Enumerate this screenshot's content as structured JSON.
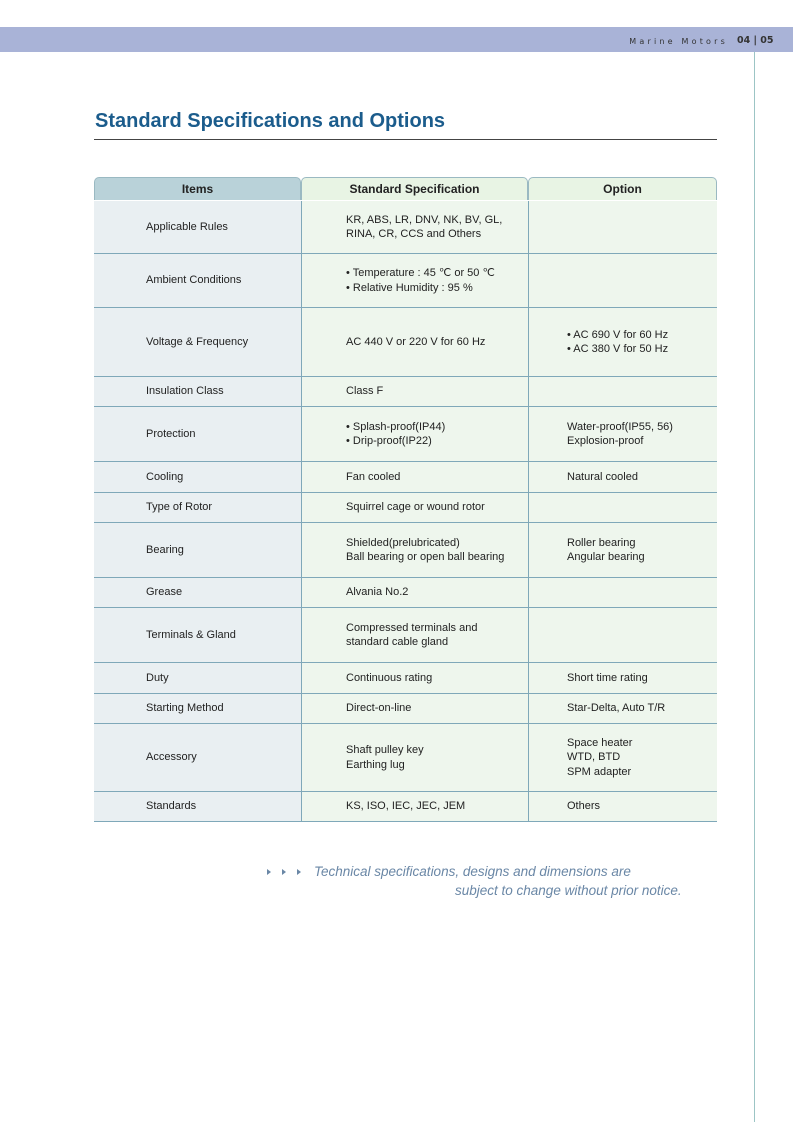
{
  "header": {
    "brand": "Marine Motors",
    "pages": "04 | 05"
  },
  "title": "Standard Specifications and Options",
  "table": {
    "columns": [
      "Items",
      "Standard Specification",
      "Option"
    ],
    "rows": [
      [
        [
          "Applicable Rules"
        ],
        [
          "KR, ABS, LR, DNV, NK, BV, GL,",
          "RINA, CR, CCS and Others"
        ],
        []
      ],
      [
        [
          "Ambient Conditions"
        ],
        [
          "• Temperature : 45 ℃ or 50 ℃",
          "• Relative Humidity : 95 %"
        ],
        []
      ],
      [
        [
          "Voltage & Frequency"
        ],
        [
          "AC 440 V or 220 V for 60 Hz"
        ],
        [
          "• AC 690 V for 60 Hz",
          "• AC 380 V for 50 Hz"
        ]
      ],
      [
        [
          "Insulation Class"
        ],
        [
          "Class F"
        ],
        []
      ],
      [
        [
          "Protection"
        ],
        [
          "• Splash-proof(IP44)",
          "• Drip-proof(IP22)"
        ],
        [
          "Water-proof(IP55, 56)",
          "Explosion-proof"
        ]
      ],
      [
        [
          "Cooling"
        ],
        [
          "Fan cooled"
        ],
        [
          "Natural cooled"
        ]
      ],
      [
        [
          "Type of Rotor"
        ],
        [
          "Squirrel cage or wound rotor"
        ],
        []
      ],
      [
        [
          "Bearing"
        ],
        [
          "Shielded(prelubricated)",
          "Ball bearing or open ball bearing"
        ],
        [
          "Roller bearing",
          "Angular bearing"
        ]
      ],
      [
        [
          "Grease"
        ],
        [
          "Alvania No.2"
        ],
        []
      ],
      [
        [
          "Terminals & Gland"
        ],
        [
          "Compressed terminals and",
          "standard cable gland"
        ],
        []
      ],
      [
        [
          "Duty"
        ],
        [
          "Continuous rating"
        ],
        [
          "Short time rating"
        ]
      ],
      [
        [
          "Starting Method"
        ],
        [
          "Direct-on-line"
        ],
        [
          "Star-Delta, Auto T/R"
        ]
      ],
      [
        [
          "Accessory"
        ],
        [
          "Shaft pulley key",
          "Earthing lug"
        ],
        [
          "Space heater",
          "WTD, BTD",
          "SPM adapter"
        ]
      ],
      [
        [
          "Standards"
        ],
        [
          "KS, ISO, IEC, JEC, JEM"
        ],
        [
          "Others"
        ]
      ]
    ]
  },
  "note": [
    "Technical specifications, designs and dimensions are",
    "subject to change without prior notice."
  ]
}
